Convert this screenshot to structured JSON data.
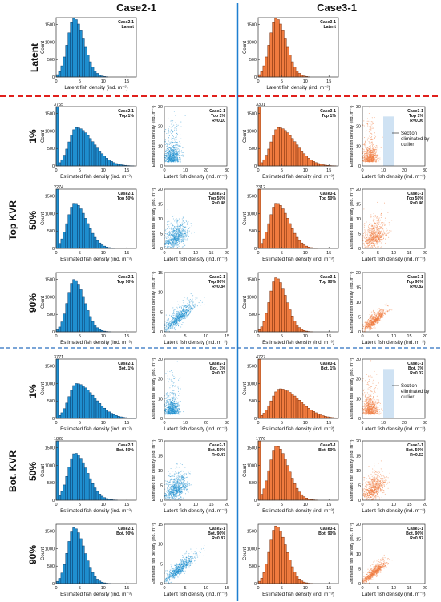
{
  "columns": [
    "Case2-1",
    "Case3-1"
  ],
  "row_labels": {
    "latent": "Latent",
    "p1": "1%",
    "p50": "50%",
    "p90": "90%",
    "top_group": "Top KVR",
    "bot_group": "Bot. KVR"
  },
  "colors": {
    "case2": "#1f8fd0",
    "case2_dark": "#0b3f6e",
    "case3": "#f07b3f",
    "case3_dark": "#7a2e0a",
    "divider_red": "#e0201c",
    "divider_blue": "#2a6fbf",
    "center_line": "#1e7fd0",
    "shade": "#cfe2f3"
  },
  "hist_common": {
    "ylabel": "Count",
    "ylim": [
      0,
      1700
    ],
    "yticks": [
      0,
      500,
      1000,
      1500
    ],
    "xlim": [
      0,
      17
    ],
    "xticks": [
      0,
      5,
      10,
      15
    ],
    "bin_width": 0.5
  },
  "scatter_common": {
    "xlabel": "Latent fish density (ind. m⁻³)",
    "ylabel": "Estimated fish density (ind. m⁻³)"
  },
  "hist_xlabels": {
    "latent": "Latent fish density (ind. m⁻³)",
    "estimated": "Estimated fish density (ind. m⁻³)"
  },
  "annotation": {
    "text_line1": "Section",
    "text_line2": "eliminated by",
    "text_line3": "outlier"
  },
  "chart_data": [
    {
      "id": "c2_latent",
      "type": "bar",
      "case": "case2",
      "row": "latent",
      "legend": [
        "Case2-1",
        "Latent"
      ],
      "shape": {
        "mode": 3.8,
        "sigma_left": 1.4,
        "sigma_right": 2.1,
        "peak": 1680
      },
      "peak_label": ""
    },
    {
      "id": "c3_latent",
      "type": "bar",
      "case": "case3",
      "row": "latent",
      "legend": [
        "Case3-1",
        "Latent"
      ],
      "shape": {
        "mode": 3.8,
        "sigma_left": 1.4,
        "sigma_right": 2.1,
        "peak": 1680
      },
      "peak_label": ""
    },
    {
      "id": "c2_top1",
      "type": "bar",
      "case": "case2",
      "row": "p1",
      "legend": [
        "Case2-1",
        "Top 1%"
      ],
      "shape": {
        "mode": 4.3,
        "sigma_left": 1.6,
        "sigma_right": 3.6,
        "peak": 1100,
        "spike": 1700
      },
      "peak_label": "3755"
    },
    {
      "id": "c2_top1_sc",
      "type": "scatter",
      "case": "case2",
      "row": "p1",
      "legend": [
        "Case2-1",
        "Top 1%",
        "R=0.10"
      ],
      "r": 0.1,
      "xlim": [
        0,
        30
      ],
      "ylim": [
        0,
        30
      ],
      "xticks": [
        0,
        10,
        20,
        30
      ],
      "yticks": [
        0,
        10,
        20,
        30
      ]
    },
    {
      "id": "c3_top1",
      "type": "bar",
      "case": "case3",
      "row": "p1",
      "legend": [
        "Case3-1",
        "Top 1%"
      ],
      "shape": {
        "mode": 4.3,
        "sigma_left": 1.6,
        "sigma_right": 3.6,
        "peak": 1100,
        "spike": 1700
      },
      "peak_label": "3301"
    },
    {
      "id": "c3_top1_sc",
      "type": "scatter",
      "case": "case3",
      "row": "p1",
      "legend": [
        "Case3-1",
        "Top 1%",
        "R=0.06"
      ],
      "r": 0.06,
      "xlim": [
        0,
        30
      ],
      "ylim": [
        0,
        30
      ],
      "xticks": [
        0,
        10,
        20,
        30
      ],
      "yticks": [
        0,
        10,
        20,
        30
      ],
      "shaded": [
        10,
        15
      ]
    },
    {
      "id": "c2_top50",
      "type": "bar",
      "case": "case2",
      "row": "p50",
      "legend": [
        "Case2-1",
        "Top 50%"
      ],
      "shape": {
        "mode": 3.9,
        "sigma_left": 1.5,
        "sigma_right": 2.6,
        "peak": 1300,
        "spike": 1700
      },
      "peak_label": "2274"
    },
    {
      "id": "c2_top50_sc",
      "type": "scatter",
      "case": "case2",
      "row": "p50",
      "legend": [
        "Case2-1",
        "Top 50%",
        "R=0.48"
      ],
      "r": 0.48,
      "xlim": [
        0,
        20
      ],
      "ylim": [
        0,
        20
      ],
      "xticks": [
        0,
        5,
        10,
        15,
        20
      ],
      "yticks": [
        0,
        5,
        10,
        15,
        20
      ]
    },
    {
      "id": "c3_top50",
      "type": "bar",
      "case": "case3",
      "row": "p50",
      "legend": [
        "Case3-1",
        "Top 50%"
      ],
      "shape": {
        "mode": 3.9,
        "sigma_left": 1.5,
        "sigma_right": 2.6,
        "peak": 1300,
        "spike": 1700
      },
      "peak_label": "2312"
    },
    {
      "id": "c3_top50_sc",
      "type": "scatter",
      "case": "case3",
      "row": "p50",
      "legend": [
        "Case3-1",
        "Top 50%",
        "R=0.46"
      ],
      "r": 0.46,
      "xlim": [
        0,
        20
      ],
      "ylim": [
        0,
        20
      ],
      "xticks": [
        0,
        5,
        10,
        15,
        20
      ],
      "yticks": [
        0,
        5,
        10,
        15,
        20
      ]
    },
    {
      "id": "c2_top90",
      "type": "bar",
      "case": "case2",
      "row": "p90",
      "legend": [
        "Case2-1",
        "Top 90%"
      ],
      "shape": {
        "mode": 3.8,
        "sigma_left": 1.4,
        "sigma_right": 2.2,
        "peak": 1500
      },
      "peak_label": ""
    },
    {
      "id": "c2_top90_sc",
      "type": "scatter",
      "case": "case2",
      "row": "p90",
      "legend": [
        "Case2-1",
        "Top 90%",
        "R=0.84"
      ],
      "r": 0.84,
      "xlim": [
        0,
        15
      ],
      "ylim": [
        0,
        15
      ],
      "xticks": [
        0,
        5,
        10,
        15
      ],
      "yticks": [
        0,
        5,
        10,
        15
      ]
    },
    {
      "id": "c3_top90",
      "type": "bar",
      "case": "case3",
      "row": "p90",
      "legend": [
        "Case3-1",
        "Top 90%"
      ],
      "shape": {
        "mode": 3.8,
        "sigma_left": 1.4,
        "sigma_right": 2.2,
        "peak": 1550
      },
      "peak_label": ""
    },
    {
      "id": "c3_top90_sc",
      "type": "scatter",
      "case": "case3",
      "row": "p90",
      "legend": [
        "Case3-1",
        "Top 90%",
        "R=0.82"
      ],
      "r": 0.82,
      "xlim": [
        0,
        20
      ],
      "ylim": [
        0,
        20
      ],
      "xticks": [
        0,
        5,
        10,
        15,
        20
      ],
      "yticks": [
        0,
        5,
        10,
        15,
        20
      ]
    },
    {
      "id": "c2_bot1",
      "type": "bar",
      "case": "case2",
      "row": "p1",
      "legend": [
        "Case2-1",
        "Bot. 1%"
      ],
      "shape": {
        "mode": 4.3,
        "sigma_left": 1.6,
        "sigma_right": 3.8,
        "peak": 1000,
        "spike": 1700
      },
      "peak_label": "3771"
    },
    {
      "id": "c2_bot1_sc",
      "type": "scatter",
      "case": "case2",
      "row": "p1",
      "legend": [
        "Case2-1",
        "Bot. 1%",
        "R=0.03"
      ],
      "r": 0.03,
      "xlim": [
        0,
        30
      ],
      "ylim": [
        0,
        30
      ],
      "xticks": [
        0,
        10,
        20,
        30
      ],
      "yticks": [
        0,
        10,
        20,
        30
      ]
    },
    {
      "id": "c3_bot1",
      "type": "bar",
      "case": "case3",
      "row": "p1",
      "legend": [
        "Case3-1",
        "Bot. 1%"
      ],
      "shape": {
        "mode": 4.6,
        "sigma_left": 1.8,
        "sigma_right": 4.2,
        "peak": 850,
        "spike": 1700
      },
      "peak_label": "4727"
    },
    {
      "id": "c3_bot1_sc",
      "type": "scatter",
      "case": "case3",
      "row": "p1",
      "legend": [
        "Case3-1",
        "Bot. 1%",
        "R=0.02"
      ],
      "r": 0.02,
      "xlim": [
        0,
        30
      ],
      "ylim": [
        0,
        30
      ],
      "xticks": [
        0,
        10,
        20,
        30
      ],
      "yticks": [
        0,
        10,
        20,
        30
      ],
      "shaded": [
        10,
        15
      ]
    },
    {
      "id": "c2_bot50",
      "type": "bar",
      "case": "case2",
      "row": "p50",
      "legend": [
        "Case2-1",
        "Bot. 50%"
      ],
      "shape": {
        "mode": 4.0,
        "sigma_left": 1.5,
        "sigma_right": 2.6,
        "peak": 1350,
        "spike": 1700
      },
      "peak_label": "1828"
    },
    {
      "id": "c2_bot50_sc",
      "type": "scatter",
      "case": "case2",
      "row": "p50",
      "legend": [
        "Case2-1",
        "Bot. 50%",
        "R=0.47"
      ],
      "r": 0.47,
      "xlim": [
        0,
        20
      ],
      "ylim": [
        0,
        20
      ],
      "xticks": [
        0,
        5,
        10,
        15,
        20
      ],
      "yticks": [
        0,
        5,
        10,
        15,
        20
      ]
    },
    {
      "id": "c3_bot50",
      "type": "bar",
      "case": "case3",
      "row": "p50",
      "legend": [
        "Case3-1",
        "Bot. 50%"
      ],
      "shape": {
        "mode": 3.9,
        "sigma_left": 1.5,
        "sigma_right": 2.5,
        "peak": 1550,
        "spike": 1700
      },
      "peak_label": "1776"
    },
    {
      "id": "c3_bot50_sc",
      "type": "scatter",
      "case": "case3",
      "row": "p50",
      "legend": [
        "Case3-1",
        "Bot. 50%",
        "R=0.52"
      ],
      "r": 0.52,
      "xlim": [
        0,
        20
      ],
      "ylim": [
        0,
        20
      ],
      "xticks": [
        0,
        5,
        10,
        15,
        20
      ],
      "yticks": [
        0,
        5,
        10,
        15,
        20
      ]
    },
    {
      "id": "c2_bot90",
      "type": "bar",
      "case": "case2",
      "row": "p90",
      "legend": [
        "Case2-1",
        "Bot. 90%"
      ],
      "shape": {
        "mode": 3.8,
        "sigma_left": 1.4,
        "sigma_right": 2.2,
        "peak": 1600
      },
      "peak_label": ""
    },
    {
      "id": "c2_bot90_sc",
      "type": "scatter",
      "case": "case2",
      "row": "p90",
      "legend": [
        "Case2-1",
        "Bot. 90%",
        "R=0.87"
      ],
      "r": 0.87,
      "xlim": [
        0,
        15
      ],
      "ylim": [
        0,
        15
      ],
      "xticks": [
        0,
        5,
        10,
        15
      ],
      "yticks": [
        0,
        5,
        10,
        15
      ]
    },
    {
      "id": "c3_bot90",
      "type": "bar",
      "case": "case3",
      "row": "p90",
      "legend": [
        "Case3-1",
        "Bot. 90%"
      ],
      "shape": {
        "mode": 3.8,
        "sigma_left": 1.4,
        "sigma_right": 2.2,
        "peak": 1650
      },
      "peak_label": ""
    },
    {
      "id": "c3_bot90_sc",
      "type": "scatter",
      "case": "case3",
      "row": "p90",
      "legend": [
        "Case3-1",
        "Bot. 90%",
        "R=0.87"
      ],
      "r": 0.87,
      "xlim": [
        0,
        20
      ],
      "ylim": [
        0,
        20
      ],
      "xticks": [
        0,
        5,
        10,
        15,
        20
      ],
      "yticks": [
        0,
        5,
        10,
        15,
        20
      ]
    }
  ]
}
